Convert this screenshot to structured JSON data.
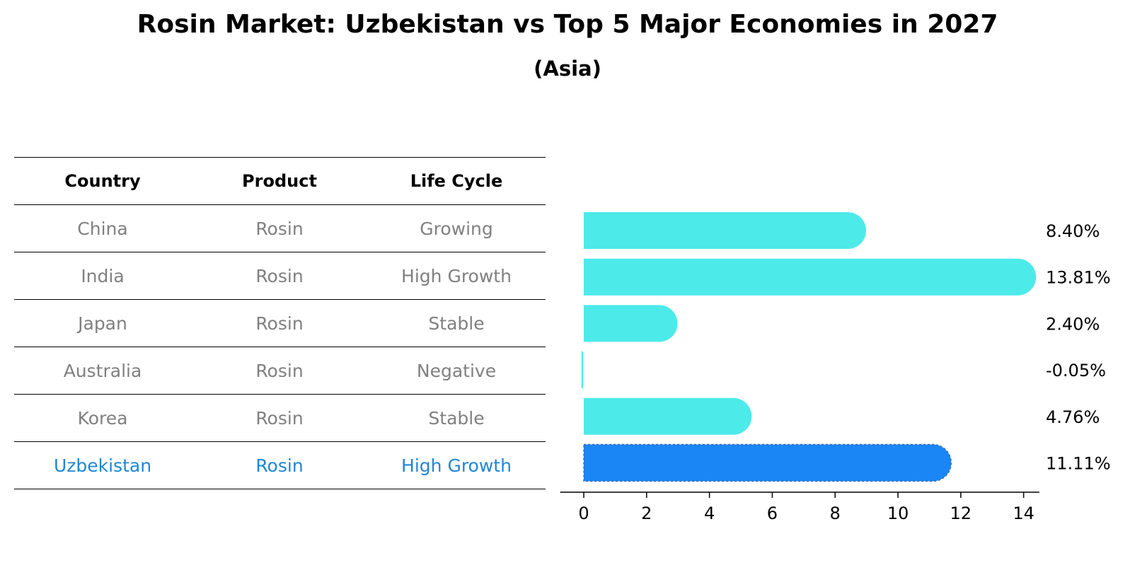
{
  "title": "Rosin Market: Uzbekistan vs Top 5 Major Economies in 2027",
  "subtitle": "(Asia)",
  "table": {
    "headers": [
      "Country",
      "Product",
      "Life Cycle"
    ],
    "rows": [
      [
        "China",
        "Rosin",
        "Growing"
      ],
      [
        "India",
        "Rosin",
        "High Growth"
      ],
      [
        "Japan",
        "Rosin",
        "Stable"
      ],
      [
        "Australia",
        "Rosin",
        "Negative"
      ],
      [
        "Korea",
        "Rosin",
        "Stable"
      ],
      [
        "Uzbekistan",
        "Rosin",
        "High Growth"
      ]
    ],
    "highlight_color": "#1f86d6",
    "text_color": "#808080"
  },
  "chart_data": {
    "type": "bar",
    "orientation": "horizontal",
    "categories": [
      "China",
      "India",
      "Japan",
      "Australia",
      "Korea",
      "Uzbekistan"
    ],
    "values": [
      8.4,
      13.81,
      2.4,
      -0.05,
      4.76,
      11.11
    ],
    "value_labels": [
      "8.40%",
      "13.81%",
      "2.40%",
      "-0.05%",
      "4.76%",
      "11.11%"
    ],
    "xticks": [
      "0",
      "2",
      "4",
      "6",
      "8",
      "10",
      "12",
      "14"
    ],
    "xlim": [
      -0.75,
      14.5
    ],
    "bar_color": "#4deaea",
    "highlight_color": "#1a85f5",
    "highlight_index": 5,
    "grid": false
  }
}
